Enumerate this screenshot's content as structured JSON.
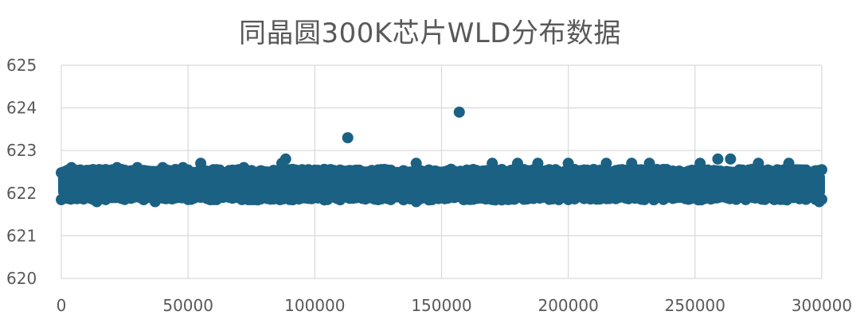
{
  "chart_data": {
    "type": "scatter",
    "title": "同晶圆300K芯片WLD分布数据",
    "xlabel": "",
    "ylabel": "",
    "xlim": [
      0,
      300000
    ],
    "ylim": [
      620,
      625
    ],
    "x_ticks": [
      0,
      50000,
      100000,
      150000,
      200000,
      250000,
      300000
    ],
    "y_ticks": [
      620,
      621,
      622,
      623,
      624,
      625
    ],
    "grid": true,
    "marker_color": "#1b6184",
    "dense_band": {
      "x_range": [
        0,
        300000
      ],
      "y_center": 622.2,
      "y_spread": [
        621.9,
        622.5
      ],
      "approx_points": 300000
    },
    "points": [
      {
        "x": 113000,
        "y": 623.3
      },
      {
        "x": 157000,
        "y": 623.9
      },
      {
        "x": 88500,
        "y": 622.8
      },
      {
        "x": 87000,
        "y": 622.7
      },
      {
        "x": 55000,
        "y": 622.7
      },
      {
        "x": 4000,
        "y": 622.6
      },
      {
        "x": 22000,
        "y": 622.6
      },
      {
        "x": 30000,
        "y": 622.6
      },
      {
        "x": 40000,
        "y": 622.6
      },
      {
        "x": 48000,
        "y": 622.6
      },
      {
        "x": 72000,
        "y": 622.6
      },
      {
        "x": 140000,
        "y": 622.7
      },
      {
        "x": 170000,
        "y": 622.7
      },
      {
        "x": 180000,
        "y": 622.7
      },
      {
        "x": 188000,
        "y": 622.7
      },
      {
        "x": 200000,
        "y": 622.7
      },
      {
        "x": 215000,
        "y": 622.7
      },
      {
        "x": 225000,
        "y": 622.7
      },
      {
        "x": 232000,
        "y": 622.7
      },
      {
        "x": 252000,
        "y": 622.7
      },
      {
        "x": 259000,
        "y": 622.8
      },
      {
        "x": 264000,
        "y": 622.8
      },
      {
        "x": 275000,
        "y": 622.7
      },
      {
        "x": 287000,
        "y": 622.7
      },
      {
        "x": 14000,
        "y": 621.8
      },
      {
        "x": 37000,
        "y": 621.8
      },
      {
        "x": 140000,
        "y": 621.8
      },
      {
        "x": 299000,
        "y": 621.8
      },
      {
        "x": 62000,
        "y": 621.9
      },
      {
        "x": 110000,
        "y": 621.9
      },
      {
        "x": 165000,
        "y": 621.9
      },
      {
        "x": 210000,
        "y": 621.9
      },
      {
        "x": 245000,
        "y": 621.9
      },
      {
        "x": 270000,
        "y": 621.9
      }
    ]
  }
}
